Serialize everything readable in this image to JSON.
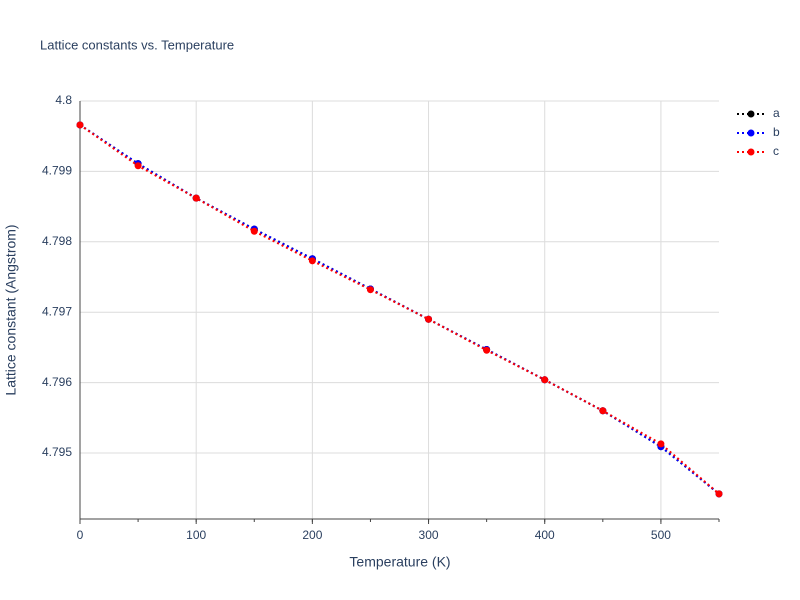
{
  "chart_data": {
    "type": "line",
    "title": "Lattice constants vs. Temperature",
    "x_label": "Temperature (K)",
    "y_label": "Lattice constant (Angstrom)",
    "x": [
      0,
      50,
      100,
      150,
      200,
      250,
      300,
      350,
      400,
      450,
      500,
      550
    ],
    "series": [
      {
        "name": "a",
        "color": "#000000",
        "values": [
          4.79966,
          4.79911,
          4.79862,
          4.79818,
          4.79776,
          4.79733,
          4.7969,
          4.79647,
          4.79604,
          4.7956,
          4.79509,
          4.79442
        ]
      },
      {
        "name": "b",
        "color": "#0000ff",
        "values": [
          4.79966,
          4.79911,
          4.79862,
          4.79818,
          4.79776,
          4.79733,
          4.7969,
          4.79647,
          4.79604,
          4.7956,
          4.79509,
          4.79442
        ]
      },
      {
        "name": "c",
        "color": "#ff0000",
        "values": [
          4.79966,
          4.79908,
          4.79862,
          4.79815,
          4.79773,
          4.79732,
          4.7969,
          4.79646,
          4.79604,
          4.7956,
          4.79513,
          4.79442
        ]
      }
    ],
    "xlim": [
      0,
      550
    ],
    "xticks": [
      0,
      100,
      200,
      300,
      400,
      500
    ],
    "ylim": [
      4.794063,
      4.8
    ],
    "yticks": [
      4.795,
      4.796,
      4.797,
      4.798,
      4.799,
      4.8
    ],
    "grid": true
  }
}
